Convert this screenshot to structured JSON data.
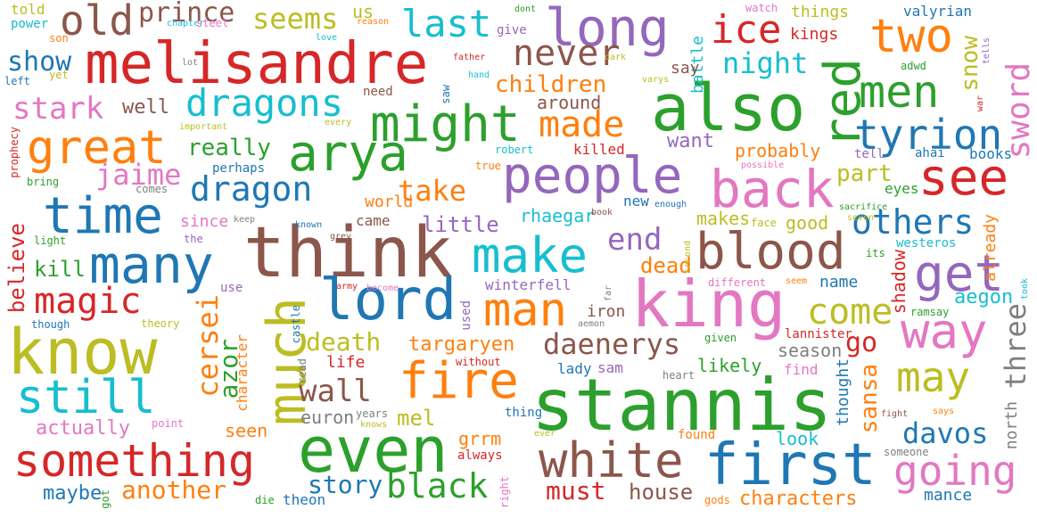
{
  "palette": {
    "blue": "#1f77b4",
    "orange": "#ff7f0e",
    "green": "#2ca02c",
    "red": "#d62728",
    "purple": "#9467bd",
    "brown": "#8c564b",
    "pink": "#e377c2",
    "gray": "#7f7f7f",
    "olive": "#bcbd22",
    "cyan": "#17becf"
  },
  "words": [
    {
      "text": "stannis",
      "color": "green"
    },
    {
      "text": "think",
      "color": "brown"
    },
    {
      "text": "know",
      "color": "olive"
    },
    {
      "text": "melisandre",
      "color": "red"
    },
    {
      "text": "also",
      "color": "green"
    },
    {
      "text": "king",
      "color": "pink"
    },
    {
      "text": "even",
      "color": "green"
    },
    {
      "text": "first",
      "color": "blue"
    },
    {
      "text": "something",
      "color": "red"
    },
    {
      "text": "white",
      "color": "brown"
    },
    {
      "text": "lord",
      "color": "blue"
    },
    {
      "text": "much",
      "color": "olive"
    },
    {
      "text": "arya",
      "color": "green"
    },
    {
      "text": "people",
      "color": "purple"
    },
    {
      "text": "blood",
      "color": "brown"
    },
    {
      "text": "back",
      "color": "pink"
    },
    {
      "text": "make",
      "color": "cyan"
    },
    {
      "text": "long",
      "color": "purple"
    },
    {
      "text": "fire",
      "color": "orange"
    },
    {
      "text": "many",
      "color": "blue"
    },
    {
      "text": "time",
      "color": "blue"
    },
    {
      "text": "might",
      "color": "green"
    },
    {
      "text": "see",
      "color": "red"
    },
    {
      "text": "great",
      "color": "orange"
    },
    {
      "text": "still",
      "color": "cyan"
    },
    {
      "text": "way",
      "color": "pink"
    },
    {
      "text": "two",
      "color": "orange"
    },
    {
      "text": "man",
      "color": "orange"
    },
    {
      "text": "red",
      "color": "green"
    },
    {
      "text": "get",
      "color": "purple"
    },
    {
      "text": "men",
      "color": "green"
    },
    {
      "text": "tyrion",
      "color": "blue"
    },
    {
      "text": "going",
      "color": "pink"
    },
    {
      "text": "may",
      "color": "olive"
    },
    {
      "text": "old",
      "color": "brown"
    },
    {
      "text": "dragons",
      "color": "cyan"
    },
    {
      "text": "magic",
      "color": "red"
    },
    {
      "text": "black",
      "color": "green"
    },
    {
      "text": "come",
      "color": "olive"
    },
    {
      "text": "last",
      "color": "cyan"
    },
    {
      "text": "ice",
      "color": "red"
    },
    {
      "text": "dragon",
      "color": "blue"
    },
    {
      "text": "never",
      "color": "brown"
    },
    {
      "text": "made",
      "color": "orange"
    },
    {
      "text": "others",
      "color": "blue"
    },
    {
      "text": "daenerys",
      "color": "brown"
    },
    {
      "text": "cersei",
      "color": "orange"
    },
    {
      "text": "davos",
      "color": "blue"
    },
    {
      "text": "sword",
      "color": "pink"
    },
    {
      "text": "prince",
      "color": "brown"
    },
    {
      "text": "seems",
      "color": "olive"
    },
    {
      "text": "night",
      "color": "cyan"
    },
    {
      "text": "take",
      "color": "orange"
    },
    {
      "text": "end",
      "color": "purple"
    },
    {
      "text": "wall",
      "color": "brown"
    },
    {
      "text": "three",
      "color": "gray"
    },
    {
      "text": "story",
      "color": "blue"
    },
    {
      "text": "another",
      "color": "orange"
    },
    {
      "text": "must",
      "color": "red"
    },
    {
      "text": "house",
      "color": "brown"
    },
    {
      "text": "stark",
      "color": "pink"
    },
    {
      "text": "show",
      "color": "blue"
    },
    {
      "text": "jaime",
      "color": "pink"
    },
    {
      "text": "azor",
      "color": "green"
    },
    {
      "text": "go",
      "color": "red"
    },
    {
      "text": "snow",
      "color": "olive"
    },
    {
      "text": "death",
      "color": "olive"
    },
    {
      "text": "children",
      "color": "orange"
    },
    {
      "text": "really",
      "color": "green"
    },
    {
      "text": "part",
      "color": "olive"
    },
    {
      "text": "sansa",
      "color": "orange"
    },
    {
      "text": "targaryen",
      "color": "orange"
    },
    {
      "text": "mel",
      "color": "olive"
    },
    {
      "text": "grrm",
      "color": "orange"
    },
    {
      "text": "dead",
      "color": "orange"
    },
    {
      "text": "maybe",
      "color": "blue"
    },
    {
      "text": "characters",
      "color": "orange"
    },
    {
      "text": "believe",
      "color": "red"
    },
    {
      "text": "little",
      "color": "purple"
    },
    {
      "text": "rhaegar",
      "color": "cyan"
    },
    {
      "text": "shadow",
      "color": "red"
    },
    {
      "text": "aegon",
      "color": "cyan"
    },
    {
      "text": "kill",
      "color": "green"
    },
    {
      "text": "want",
      "color": "purple"
    },
    {
      "text": "well",
      "color": "brown"
    },
    {
      "text": "actually",
      "color": "pink"
    },
    {
      "text": "seen",
      "color": "orange"
    },
    {
      "text": "look",
      "color": "cyan"
    },
    {
      "text": "likely",
      "color": "green"
    },
    {
      "text": "season",
      "color": "gray"
    },
    {
      "text": "euron",
      "color": "gray"
    },
    {
      "text": "good",
      "color": "olive"
    },
    {
      "text": "makes",
      "color": "olive"
    },
    {
      "text": "probably",
      "color": "orange"
    },
    {
      "text": "around",
      "color": "brown"
    },
    {
      "text": "thought",
      "color": "blue"
    },
    {
      "text": "battle",
      "color": "cyan"
    },
    {
      "text": "kings",
      "color": "red"
    },
    {
      "text": "things",
      "color": "olive"
    },
    {
      "text": "name",
      "color": "blue"
    },
    {
      "text": "world",
      "color": "orange"
    },
    {
      "text": "came",
      "color": "brown"
    },
    {
      "text": "since",
      "color": "pink"
    },
    {
      "text": "life",
      "color": "red"
    },
    {
      "text": "iron",
      "color": "brown"
    },
    {
      "text": "winterfell",
      "color": "purple"
    },
    {
      "text": "us",
      "color": "olive"
    },
    {
      "text": "north",
      "color": "gray"
    },
    {
      "text": "already",
      "color": "orange"
    },
    {
      "text": "character",
      "color": "orange"
    },
    {
      "text": "say",
      "color": "brown"
    },
    {
      "text": "mance",
      "color": "blue"
    },
    {
      "text": "books",
      "color": "blue"
    },
    {
      "text": "eyes",
      "color": "green"
    },
    {
      "text": "new",
      "color": "blue"
    },
    {
      "text": "killed",
      "color": "red"
    },
    {
      "text": "theon",
      "color": "blue"
    },
    {
      "text": "lady",
      "color": "blue"
    },
    {
      "text": "sam",
      "color": "purple"
    },
    {
      "text": "lannister",
      "color": "red"
    },
    {
      "text": "find",
      "color": "pink"
    },
    {
      "text": "told",
      "color": "olive"
    },
    {
      "text": "valyrian",
      "color": "blue"
    },
    {
      "text": "ahai",
      "color": "blue"
    },
    {
      "text": "used",
      "color": "purple"
    },
    {
      "text": "thing",
      "color": "blue"
    },
    {
      "text": "westeros",
      "color": "cyan"
    },
    {
      "text": "found",
      "color": "orange"
    },
    {
      "text": "tell",
      "color": "purple"
    },
    {
      "text": "perhaps",
      "color": "blue"
    },
    {
      "text": "castle",
      "color": "blue"
    },
    {
      "text": "dont",
      "color": "green"
    },
    {
      "text": "watch",
      "color": "pink"
    },
    {
      "text": "power",
      "color": "cyan"
    },
    {
      "text": "son",
      "color": "orange"
    },
    {
      "text": "chapter",
      "color": "cyan"
    },
    {
      "text": "steel",
      "color": "pink"
    },
    {
      "text": "love",
      "color": "cyan"
    },
    {
      "text": "reason",
      "color": "orange"
    },
    {
      "text": "give",
      "color": "purple"
    },
    {
      "text": "left",
      "color": "blue"
    },
    {
      "text": "yet",
      "color": "olive"
    },
    {
      "text": "lot",
      "color": "gray"
    },
    {
      "text": "father",
      "color": "red"
    },
    {
      "text": "dark",
      "color": "olive"
    },
    {
      "text": "hand",
      "color": "cyan"
    },
    {
      "text": "saw",
      "color": "blue"
    },
    {
      "text": "need",
      "color": "brown"
    },
    {
      "text": "important",
      "color": "olive"
    },
    {
      "text": "every",
      "color": "olive"
    },
    {
      "text": "prophecy",
      "color": "red"
    },
    {
      "text": "robert",
      "color": "cyan"
    },
    {
      "text": "true",
      "color": "orange"
    },
    {
      "text": "varys",
      "color": "olive"
    },
    {
      "text": "war",
      "color": "red"
    },
    {
      "text": "tells",
      "color": "purple"
    },
    {
      "text": "adwd",
      "color": "green"
    },
    {
      "text": "possible",
      "color": "pink"
    },
    {
      "text": "bring",
      "color": "green"
    },
    {
      "text": "comes",
      "color": "gray"
    },
    {
      "text": "keep",
      "color": "gray"
    },
    {
      "text": "known",
      "color": "blue"
    },
    {
      "text": "grey",
      "color": "brown"
    },
    {
      "text": "enough",
      "color": "blue"
    },
    {
      "text": "book",
      "color": "brown"
    },
    {
      "text": "second",
      "color": "olive"
    },
    {
      "text": "face",
      "color": "olive"
    },
    {
      "text": "sacrifice",
      "color": "green"
    },
    {
      "text": "seven",
      "color": "olive"
    },
    {
      "text": "light",
      "color": "green"
    },
    {
      "text": "the",
      "color": "purple"
    },
    {
      "text": "its",
      "color": "green"
    },
    {
      "text": "took",
      "color": "cyan"
    },
    {
      "text": "use",
      "color": "purple"
    },
    {
      "text": "army",
      "color": "red"
    },
    {
      "text": "become",
      "color": "pink"
    },
    {
      "text": "far",
      "color": "gray"
    },
    {
      "text": "different",
      "color": "pink"
    },
    {
      "text": "seem",
      "color": "orange"
    },
    {
      "text": "ramsay",
      "color": "green"
    },
    {
      "text": "though",
      "color": "blue"
    },
    {
      "text": "theory",
      "color": "olive"
    },
    {
      "text": "aemon",
      "color": "gray"
    },
    {
      "text": "given",
      "color": "green"
    },
    {
      "text": "read",
      "color": "gray"
    },
    {
      "text": "without",
      "color": "red"
    },
    {
      "text": "heart",
      "color": "gray"
    },
    {
      "text": "point",
      "color": "pink"
    },
    {
      "text": "years",
      "color": "gray"
    },
    {
      "text": "knows",
      "color": "olive"
    },
    {
      "text": "fight",
      "color": "brown"
    },
    {
      "text": "says",
      "color": "orange"
    },
    {
      "text": "ever",
      "color": "olive"
    },
    {
      "text": "someone",
      "color": "gray"
    },
    {
      "text": "always",
      "color": "red"
    },
    {
      "text": "got",
      "color": "green"
    },
    {
      "text": "right",
      "color": "pink"
    },
    {
      "text": "die",
      "color": "green"
    },
    {
      "text": "gods",
      "color": "orange"
    }
  ]
}
